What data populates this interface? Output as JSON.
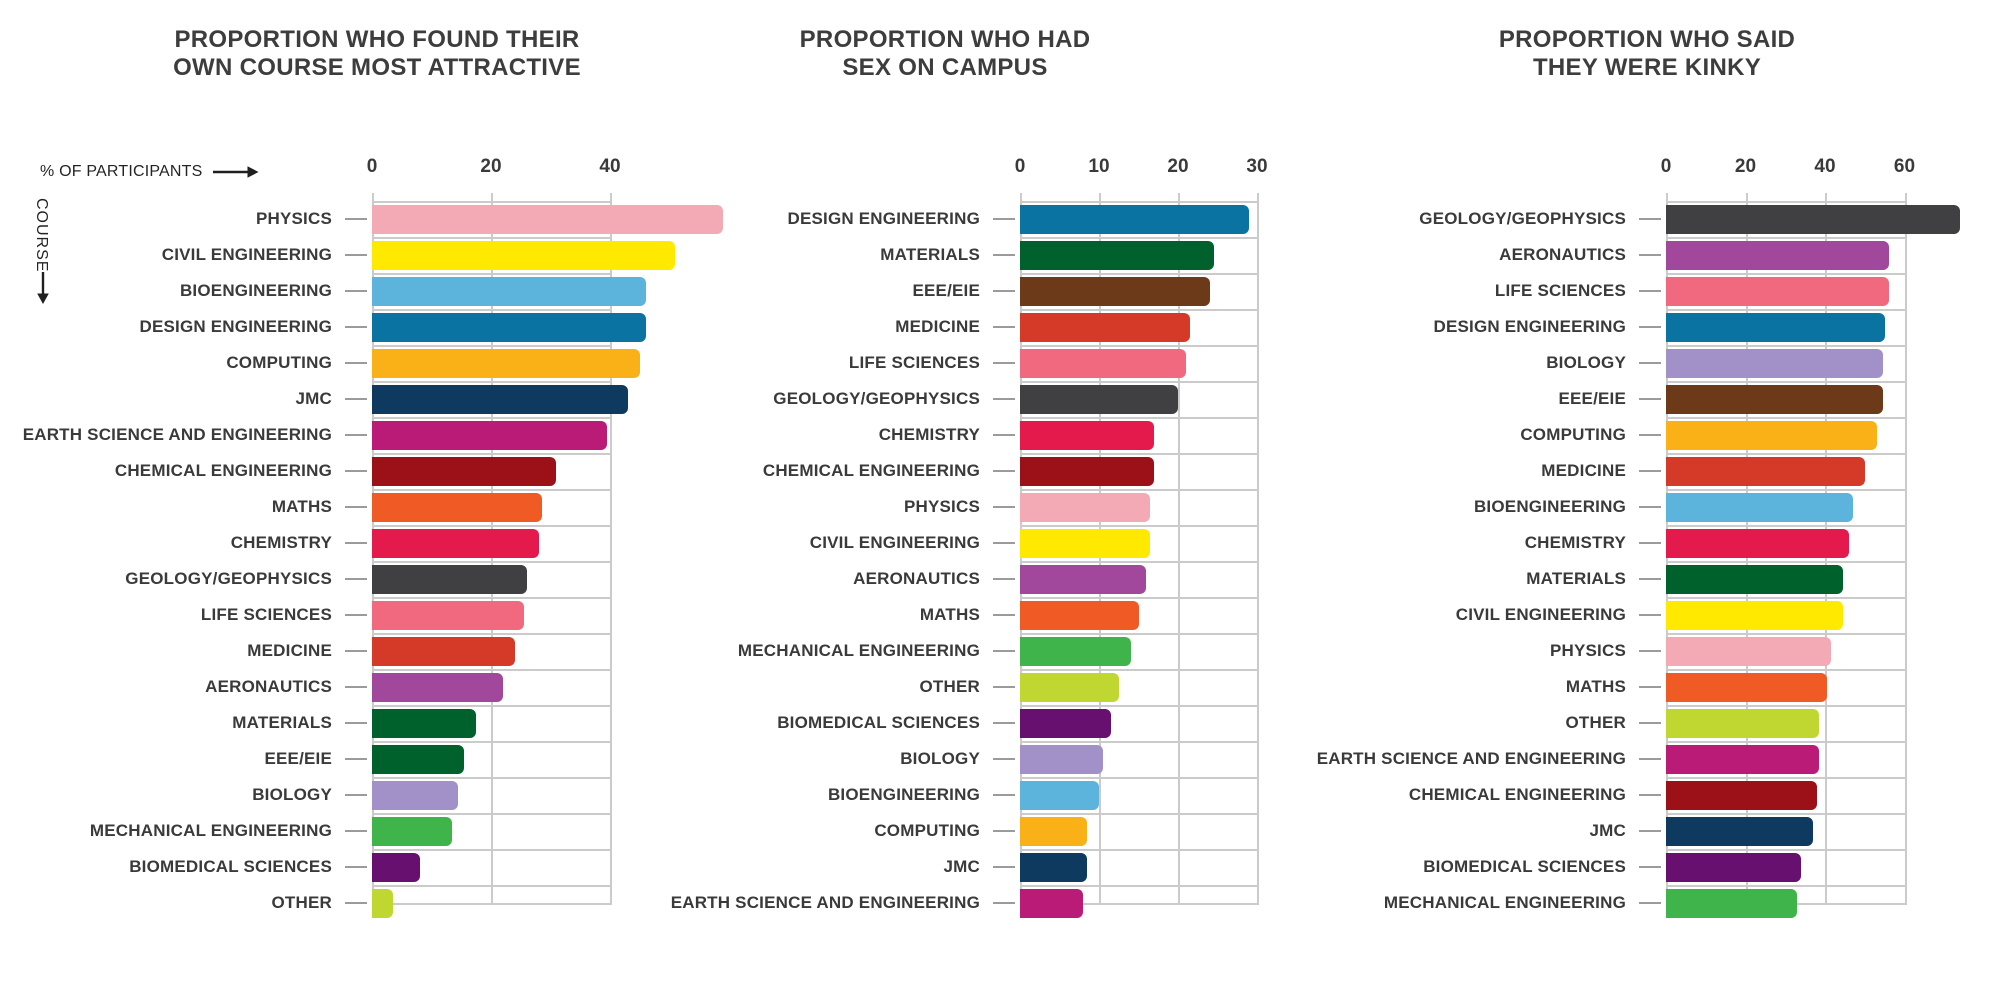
{
  "page": {
    "background": "#ffffff",
    "text_color": "#3d3d3d",
    "grid_color": "#cbcbcb",
    "leader_dash_color": "#9b9b9b"
  },
  "axis_header": {
    "x_label": "% OF PARTICIPANTS",
    "y_label": "COURSE"
  },
  "chart_data": [
    {
      "type": "bar",
      "orientation": "horizontal",
      "title_lines": [
        "PROPORTION WHO FOUND THEIR",
        "OWN COURSE MOST ATTRACTIVE"
      ],
      "xlabel": "% OF PARTICIPANTS",
      "ylabel": "COURSE",
      "unit": "%",
      "ticks": [
        0,
        20,
        40
      ],
      "xlim": [
        0,
        40
      ],
      "grid": true,
      "legend": "none",
      "bars": [
        {
          "label": "PHYSICS",
          "value": 59,
          "color": "#f4aab4"
        },
        {
          "label": "CIVIL ENGINEERING",
          "value": 51,
          "color": "#ffe900"
        },
        {
          "label": "BIOENGINEERING",
          "value": 46,
          "color": "#5cb3dc"
        },
        {
          "label": "DESIGN ENGINEERING",
          "value": 46,
          "color": "#0b73a2"
        },
        {
          "label": "COMPUTING",
          "value": 45,
          "color": "#f9b117"
        },
        {
          "label": "JMC",
          "value": 43,
          "color": "#0f3a60"
        },
        {
          "label": "EARTH SCIENCE AND ENGINEERING",
          "value": 39.5,
          "color": "#ba1b77"
        },
        {
          "label": "CHEMICAL ENGINEERING",
          "value": 31,
          "color": "#9c1117"
        },
        {
          "label": "MATHS",
          "value": 28.5,
          "color": "#f05a25"
        },
        {
          "label": "CHEMISTRY",
          "value": 28,
          "color": "#e41a4d"
        },
        {
          "label": "GEOLOGY/GEOPHYSICS",
          "value": 26,
          "color": "#404042"
        },
        {
          "label": "LIFE SCIENCES",
          "value": 25.5,
          "color": "#f0697f"
        },
        {
          "label": "MEDICINE",
          "value": 24,
          "color": "#d43a27"
        },
        {
          "label": "AERONAUTICS",
          "value": 22,
          "color": "#a1489d"
        },
        {
          "label": "MATERIALS",
          "value": 17.5,
          "color": "#00612c"
        },
        {
          "label": "EEE/EIE",
          "value": 15.5,
          "color": "#00612c"
        },
        {
          "label": "BIOLOGY",
          "value": 14.5,
          "color": "#a290c8"
        },
        {
          "label": "MECHANICAL ENGINEERING",
          "value": 13.5,
          "color": "#3eb44b"
        },
        {
          "label": "BIOMEDICAL SCIENCES",
          "value": 8,
          "color": "#671070"
        },
        {
          "label": "OTHER",
          "value": 3.5,
          "color": "#c1d731"
        }
      ]
    },
    {
      "type": "bar",
      "orientation": "horizontal",
      "title_lines": [
        "PROPORTION WHO HAD",
        "SEX ON CAMPUS"
      ],
      "xlabel": "% OF PARTICIPANTS",
      "ylabel": "COURSE",
      "unit": "%",
      "ticks": [
        0,
        10,
        20,
        30
      ],
      "xlim": [
        0,
        30
      ],
      "grid": true,
      "legend": "none",
      "bars": [
        {
          "label": "DESIGN ENGINEERING",
          "value": 29,
          "color": "#0b73a2"
        },
        {
          "label": "MATERIALS",
          "value": 24.5,
          "color": "#00612c"
        },
        {
          "label": "EEE/EIE",
          "value": 24,
          "color": "#6c3a18"
        },
        {
          "label": "MEDICINE",
          "value": 21.5,
          "color": "#d43a27"
        },
        {
          "label": "LIFE SCIENCES",
          "value": 21,
          "color": "#f0697f"
        },
        {
          "label": "GEOLOGY/GEOPHYSICS",
          "value": 20,
          "color": "#404042"
        },
        {
          "label": "CHEMISTRY",
          "value": 17,
          "color": "#e41a4d"
        },
        {
          "label": "CHEMICAL ENGINEERING",
          "value": 17,
          "color": "#9c1117"
        },
        {
          "label": "PHYSICS",
          "value": 16.5,
          "color": "#f4aab4"
        },
        {
          "label": "CIVIL ENGINEERING",
          "value": 16.5,
          "color": "#ffe900"
        },
        {
          "label": "AERONAUTICS",
          "value": 16,
          "color": "#a1489d"
        },
        {
          "label": "MATHS",
          "value": 15,
          "color": "#f05a25"
        },
        {
          "label": "MECHANICAL ENGINEERING",
          "value": 14,
          "color": "#3eb44b"
        },
        {
          "label": "OTHER",
          "value": 12.5,
          "color": "#c1d731"
        },
        {
          "label": "BIOMEDICAL SCIENCES",
          "value": 11.5,
          "color": "#671070"
        },
        {
          "label": "BIOLOGY",
          "value": 10.5,
          "color": "#a290c8"
        },
        {
          "label": "BIOENGINEERING",
          "value": 10,
          "color": "#5cb3dc"
        },
        {
          "label": "COMPUTING",
          "value": 8.5,
          "color": "#f9b117"
        },
        {
          "label": "JMC",
          "value": 8.5,
          "color": "#0f3a60"
        },
        {
          "label": "EARTH SCIENCE AND ENGINEERING",
          "value": 8,
          "color": "#ba1b77"
        }
      ]
    },
    {
      "type": "bar",
      "orientation": "horizontal",
      "title_lines": [
        "PROPORTION WHO SAID",
        "THEY WERE KINKY"
      ],
      "xlabel": "% OF PARTICIPANTS",
      "ylabel": "COURSE",
      "unit": "%",
      "ticks": [
        0,
        20,
        40,
        60
      ],
      "xlim": [
        0,
        60
      ],
      "grid": true,
      "legend": "none",
      "bars": [
        {
          "label": "GEOLOGY/GEOPHYSICS",
          "value": 74,
          "color": "#404042"
        },
        {
          "label": "AERONAUTICS",
          "value": 56,
          "color": "#a1489d"
        },
        {
          "label": "LIFE SCIENCES",
          "value": 56,
          "color": "#f0697f"
        },
        {
          "label": "DESIGN ENGINEERING",
          "value": 55,
          "color": "#0b73a2"
        },
        {
          "label": "BIOLOGY",
          "value": 54.5,
          "color": "#a290c8"
        },
        {
          "label": "EEE/EIE",
          "value": 54.5,
          "color": "#6c3a18"
        },
        {
          "label": "COMPUTING",
          "value": 53,
          "color": "#f9b117"
        },
        {
          "label": "MEDICINE",
          "value": 50,
          "color": "#d43a27"
        },
        {
          "label": "BIOENGINEERING",
          "value": 47,
          "color": "#5cb3dc"
        },
        {
          "label": "CHEMISTRY",
          "value": 46,
          "color": "#e41a4d"
        },
        {
          "label": "MATERIALS",
          "value": 44.5,
          "color": "#00612c"
        },
        {
          "label": "CIVIL ENGINEERING",
          "value": 44.5,
          "color": "#ffe900"
        },
        {
          "label": "PHYSICS",
          "value": 41.5,
          "color": "#f4aab4"
        },
        {
          "label": "MATHS",
          "value": 40.5,
          "color": "#f05a25"
        },
        {
          "label": "OTHER",
          "value": 38.5,
          "color": "#c1d731"
        },
        {
          "label": "EARTH SCIENCE AND ENGINEERING",
          "value": 38.5,
          "color": "#ba1b77"
        },
        {
          "label": "CHEMICAL ENGINEERING",
          "value": 38,
          "color": "#9c1117"
        },
        {
          "label": "JMC",
          "value": 37,
          "color": "#0f3a60"
        },
        {
          "label": "BIOMEDICAL SCIENCES",
          "value": 34,
          "color": "#671070"
        },
        {
          "label": "MECHANICAL ENGINEERING",
          "value": 33,
          "color": "#3eb44b"
        }
      ]
    }
  ]
}
